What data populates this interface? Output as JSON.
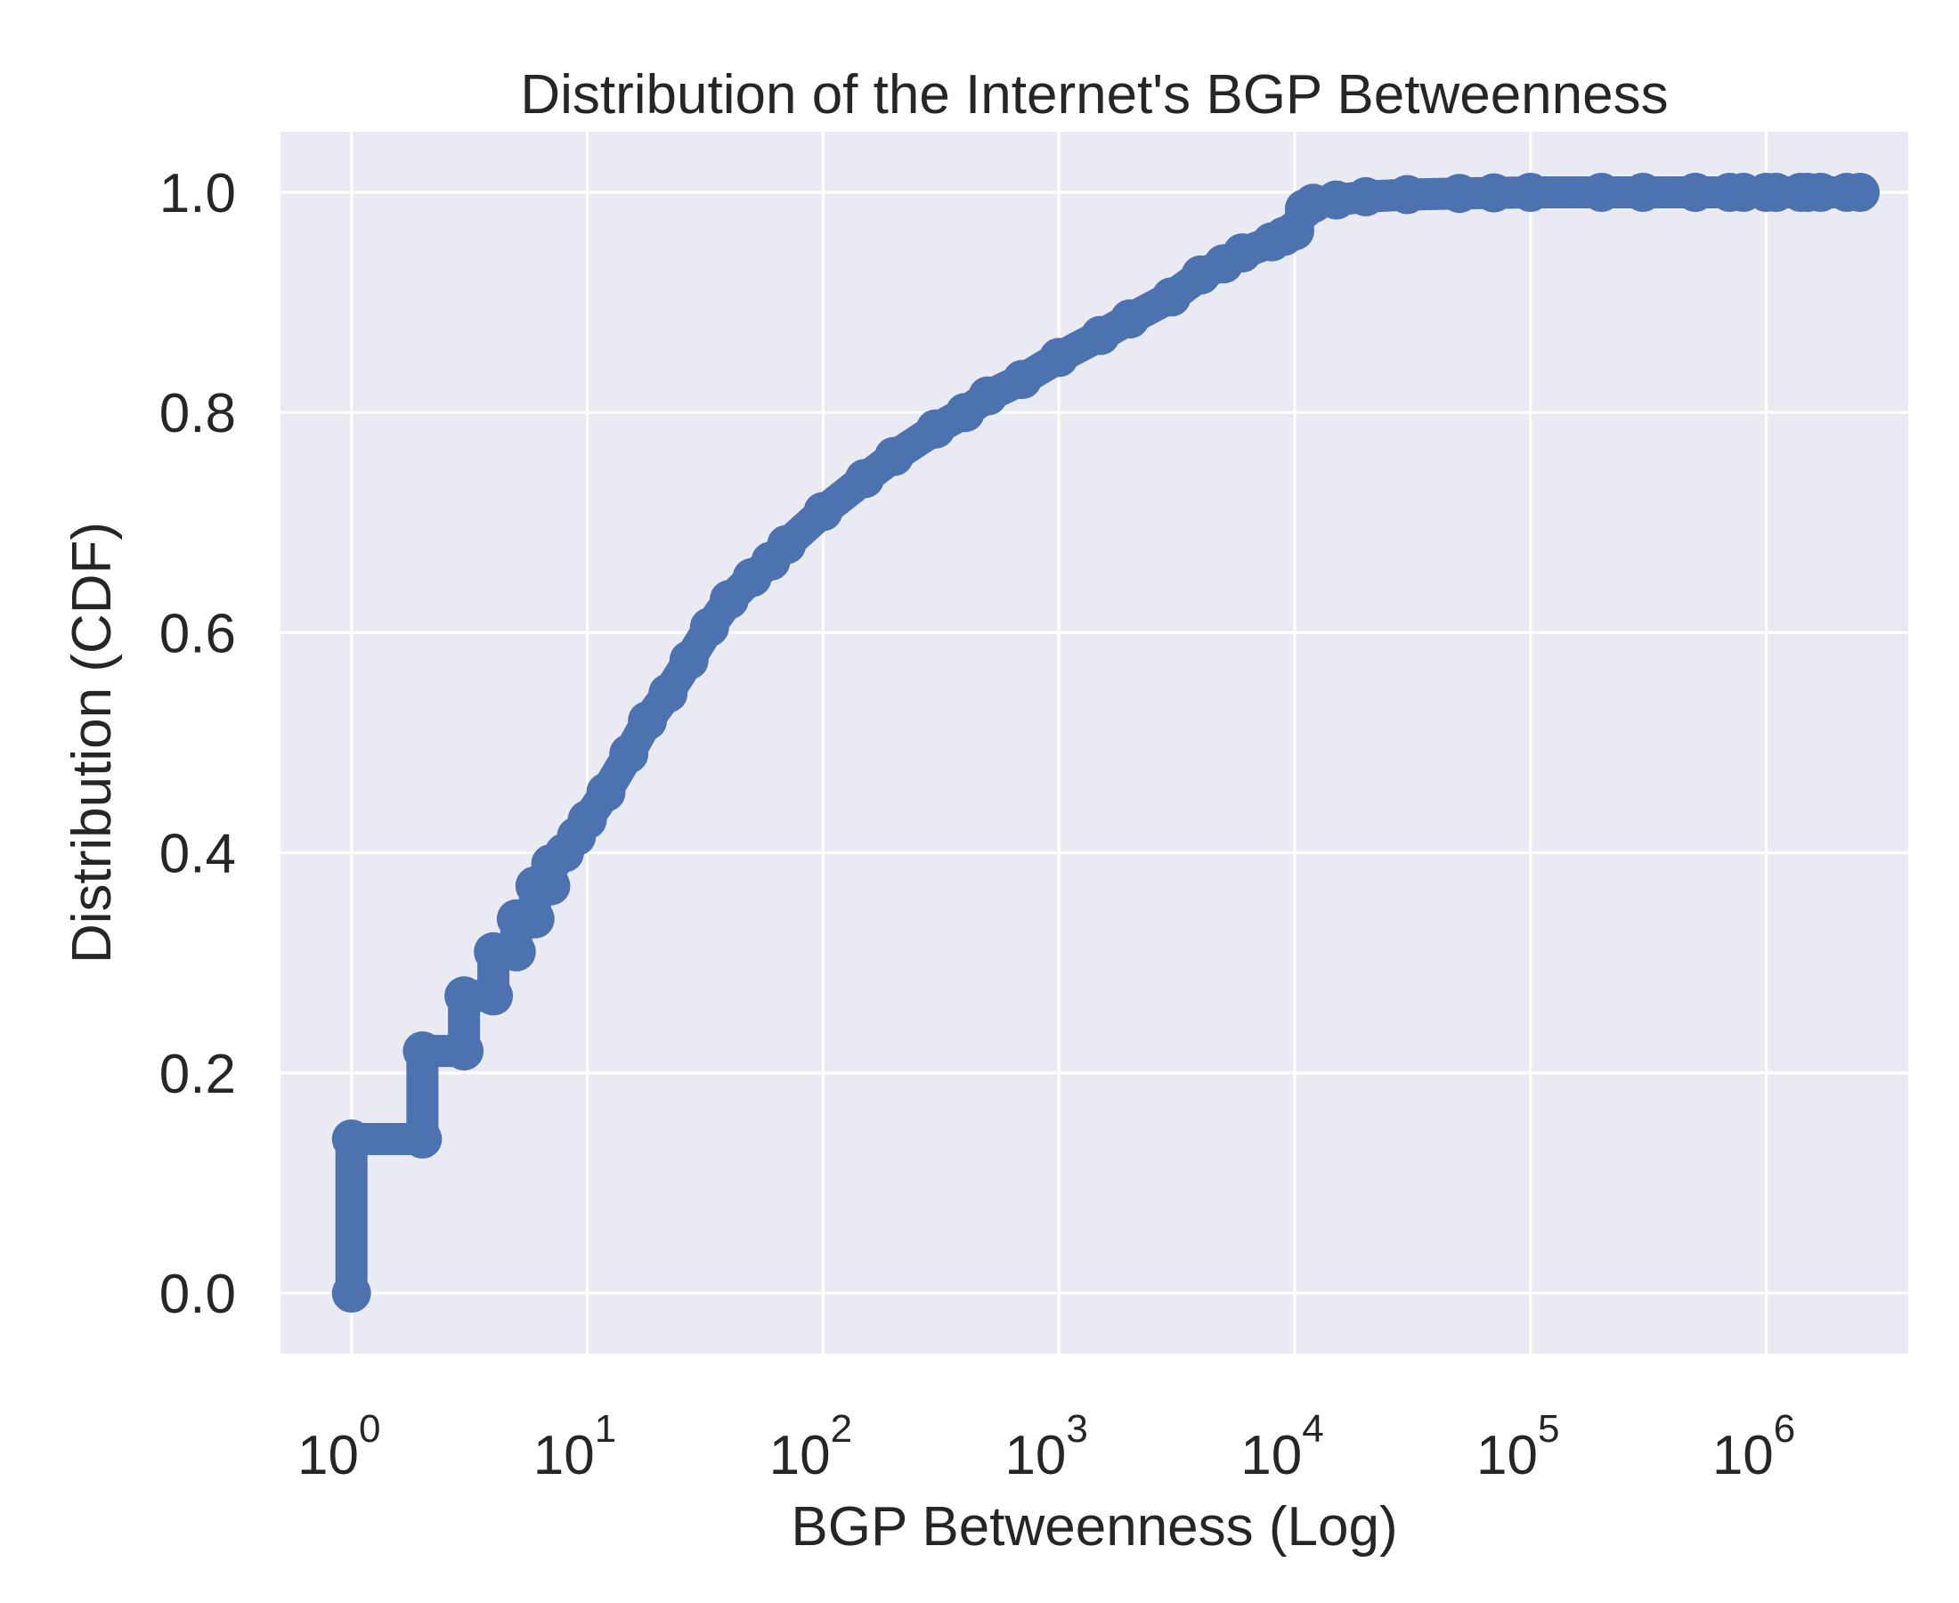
{
  "chart_data": {
    "type": "scatter",
    "title": "Distribution of the Internet's BGP Betweenness",
    "xlabel": "BGP Betweenness (Log)",
    "ylabel": "Distribution (CDF)",
    "x_scale": "log",
    "xlim": [
      0.5,
      4000000
    ],
    "ylim": [
      -0.055,
      1.055
    ],
    "x_ticks": [
      {
        "base": "10",
        "exp": "0",
        "value": 1
      },
      {
        "base": "10",
        "exp": "1",
        "value": 10
      },
      {
        "base": "10",
        "exp": "2",
        "value": 100
      },
      {
        "base": "10",
        "exp": "3",
        "value": 1000
      },
      {
        "base": "10",
        "exp": "4",
        "value": 10000
      },
      {
        "base": "10",
        "exp": "5",
        "value": 100000
      },
      {
        "base": "10",
        "exp": "6",
        "value": 1000000
      }
    ],
    "y_ticks": [
      {
        "label": "0.0",
        "value": 0.0
      },
      {
        "label": "0.2",
        "value": 0.2
      },
      {
        "label": "0.4",
        "value": 0.4
      },
      {
        "label": "0.6",
        "value": 0.6
      },
      {
        "label": "0.8",
        "value": 0.8
      },
      {
        "label": "1.0",
        "value": 1.0
      }
    ],
    "grid": true,
    "background_color": "#eaeaf2",
    "grid_color": "#ffffff",
    "series": [
      {
        "color": "#4c72b0",
        "x": [
          1,
          1,
          2,
          2,
          3,
          3,
          4,
          4,
          5,
          5,
          6,
          6,
          7,
          7,
          8,
          9,
          10,
          12,
          15,
          18,
          22,
          27,
          33,
          40,
          50,
          60,
          70,
          100,
          150,
          200,
          300,
          400,
          500,
          700,
          1000,
          1500,
          2000,
          3000,
          4000,
          5000,
          6000,
          8000,
          9000,
          10000,
          11000,
          12000,
          15000,
          20000,
          30000,
          50000,
          70000,
          100000,
          200000,
          300000,
          500000,
          700000,
          800000,
          1000000,
          1100000,
          1400000,
          1500000,
          1700000,
          2200000,
          2500000
        ],
        "y": [
          0.0,
          0.14,
          0.14,
          0.22,
          0.22,
          0.27,
          0.27,
          0.31,
          0.31,
          0.34,
          0.34,
          0.37,
          0.37,
          0.39,
          0.4,
          0.415,
          0.43,
          0.455,
          0.49,
          0.52,
          0.545,
          0.575,
          0.605,
          0.63,
          0.65,
          0.665,
          0.68,
          0.71,
          0.74,
          0.76,
          0.785,
          0.8,
          0.815,
          0.83,
          0.85,
          0.87,
          0.885,
          0.905,
          0.925,
          0.935,
          0.945,
          0.955,
          0.96,
          0.965,
          0.985,
          0.99,
          0.993,
          0.996,
          0.998,
          0.999,
          0.9995,
          1.0,
          1.0,
          1.0,
          1.0,
          1.0,
          1.0,
          1.0,
          1.0,
          1.0,
          1.0,
          1.0,
          1.0,
          1.0
        ]
      }
    ]
  }
}
